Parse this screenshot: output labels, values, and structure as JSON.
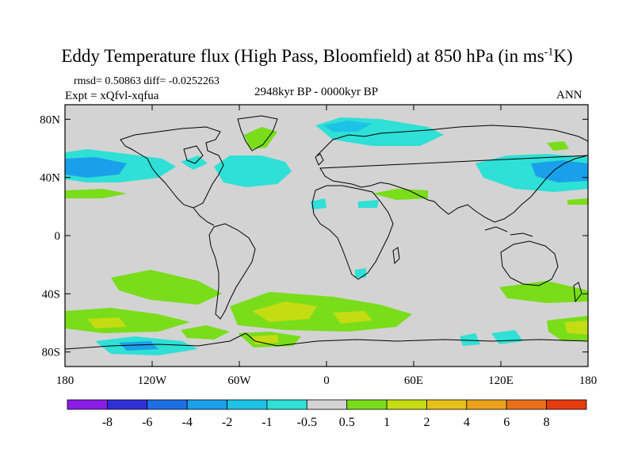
{
  "title": {
    "main": "Eddy Temperature flux (High Pass, Bloomfield) at 850 hPa (in ms",
    "sup": "-1",
    "tail": "K)"
  },
  "stats": "rmsd= 0.50863 diff= -0.0252263",
  "expt": "Expt = xQfvl-xqfua",
  "period": "2948kyr BP - 0000kyr BP",
  "season": "ANN",
  "map": {
    "lat_labels": [
      "80N",
      "40N",
      "0",
      "40S",
      "80S"
    ],
    "lat_values": [
      80,
      40,
      0,
      -40,
      -80
    ],
    "lon_labels": [
      "180",
      "120W",
      "60W",
      "0",
      "60E",
      "120E",
      "180"
    ],
    "lon_values": [
      -180,
      -120,
      -60,
      0,
      60,
      120,
      180
    ],
    "lat_range": [
      -90,
      90
    ],
    "lon_range": [
      -180,
      180
    ],
    "land_color": "#d3d3d3"
  },
  "colorbar": {
    "labels": [
      "-8",
      "-6",
      "-4",
      "-2",
      "-1",
      "-0.5",
      "0.5",
      "1",
      "2",
      "4",
      "6",
      "8"
    ],
    "colors": [
      "#8b1ce8",
      "#2f2fd9",
      "#1e6fe6",
      "#1aa0ea",
      "#1cc3e6",
      "#2ee0d6",
      "#d3d3d3",
      "#79dd1a",
      "#c4dc12",
      "#e6c11a",
      "#eba21a",
      "#e8701a",
      "#e63a10"
    ]
  }
}
